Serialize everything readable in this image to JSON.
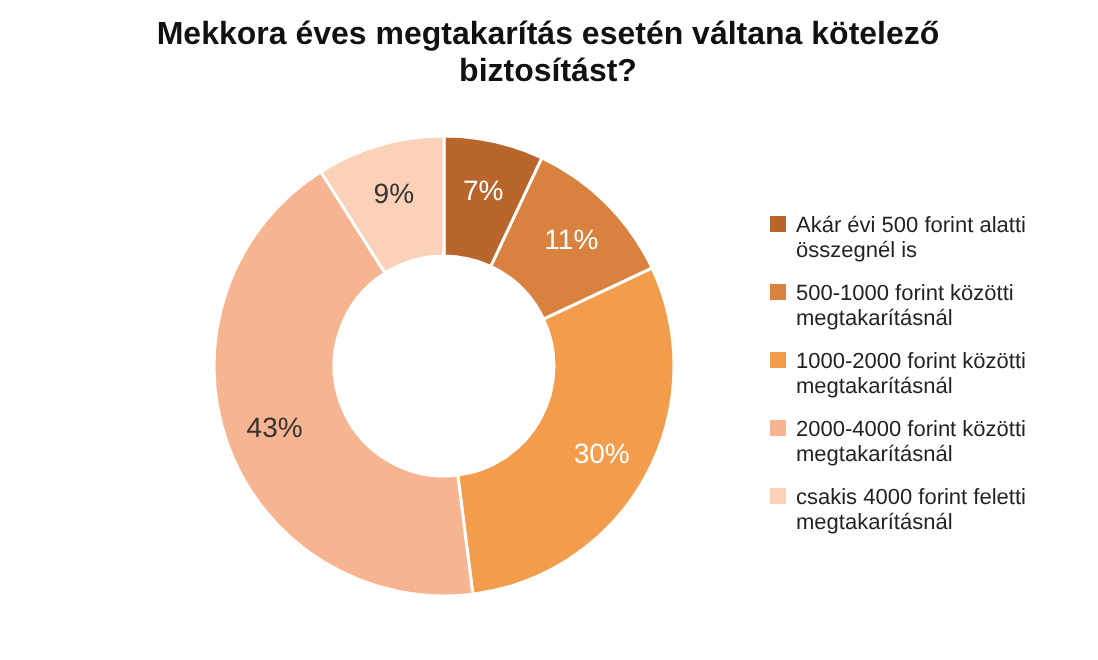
{
  "chart_data": {
    "type": "donut",
    "title": "Mekkora éves megtakarítás esetén váltana kötelező biztosítást?",
    "categories": [
      "Akár évi 500 forint alatti összegnél is",
      "500-1000 forint közötti megtakarításnál",
      "1000-2000 forint közötti megtakarításnál",
      "2000-4000 forint közötti megtakarításnál",
      "csakis 4000 forint feletti megtakarításnál"
    ],
    "values": [
      7,
      11,
      30,
      43,
      9
    ],
    "colors": [
      "#b8662c",
      "#d9813f",
      "#f39c4c",
      "#f7b490",
      "#fbd2b8"
    ],
    "value_labels": [
      "7%",
      "11%",
      "30%",
      "43%",
      "9%"
    ],
    "legend": "right"
  }
}
